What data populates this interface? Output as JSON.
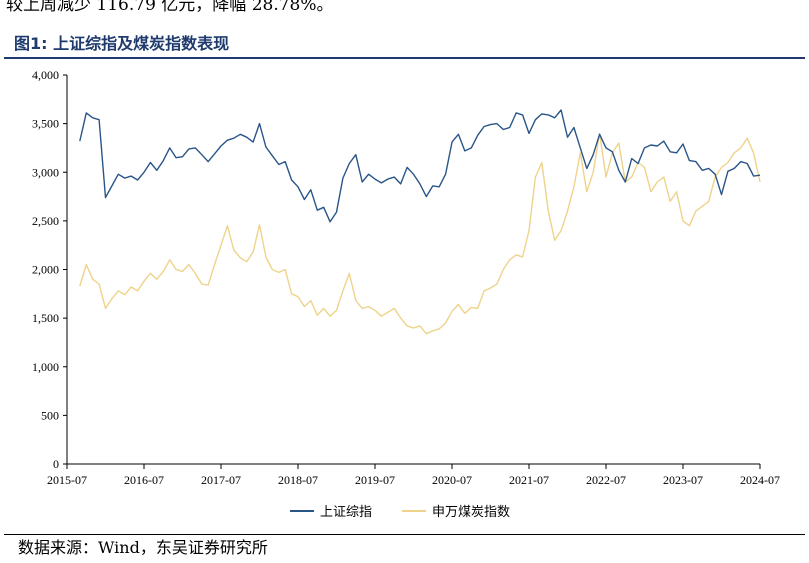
{
  "header": {
    "intro_text": "较上周减少 116.79 亿元，降幅 28.78%。",
    "figure_title": "图1:  上证综指及煤炭指数表现"
  },
  "footer": {
    "source": "数据来源：Wind，东吴证券研究所"
  },
  "chart_data": {
    "type": "line",
    "title": "",
    "xlabel": "",
    "ylabel": "",
    "ylim": [
      0,
      4000
    ],
    "yticks": [
      0,
      500,
      1000,
      1500,
      2000,
      2500,
      3000,
      3500,
      4000
    ],
    "ytick_labels": [
      "0",
      "500",
      "1,000",
      "1,500",
      "2,000",
      "2,500",
      "3,000",
      "3,500",
      "4,000"
    ],
    "xlim": [
      "2015-07",
      "2024-07"
    ],
    "xtick_labels": [
      "2015-07",
      "2016-07",
      "2017-07",
      "2018-07",
      "2019-07",
      "2020-07",
      "2021-07",
      "2022-07",
      "2023-07",
      "2024-07"
    ],
    "grid": false,
    "legend_position": "bottom",
    "series": [
      {
        "name": "上证综指",
        "color": "#2a5588",
        "x": [
          "2015-09",
          "2015-10",
          "2015-11",
          "2015-12",
          "2016-01",
          "2016-02",
          "2016-03",
          "2016-04",
          "2016-05",
          "2016-06",
          "2016-07",
          "2016-08",
          "2016-09",
          "2016-10",
          "2016-11",
          "2016-12",
          "2017-01",
          "2017-02",
          "2017-03",
          "2017-04",
          "2017-05",
          "2017-06",
          "2017-07",
          "2017-08",
          "2017-09",
          "2017-10",
          "2017-11",
          "2017-12",
          "2018-01",
          "2018-02",
          "2018-03",
          "2018-04",
          "2018-05",
          "2018-06",
          "2018-07",
          "2018-08",
          "2018-09",
          "2018-10",
          "2018-11",
          "2018-12",
          "2019-01",
          "2019-02",
          "2019-03",
          "2019-04",
          "2019-05",
          "2019-06",
          "2019-07",
          "2019-08",
          "2019-09",
          "2019-10",
          "2019-11",
          "2019-12",
          "2020-01",
          "2020-02",
          "2020-03",
          "2020-04",
          "2020-05",
          "2020-06",
          "2020-07",
          "2020-08",
          "2020-09",
          "2020-10",
          "2020-11",
          "2020-12",
          "2021-01",
          "2021-02",
          "2021-03",
          "2021-04",
          "2021-05",
          "2021-06",
          "2021-07",
          "2021-08",
          "2021-09",
          "2021-10",
          "2021-11",
          "2021-12",
          "2022-01",
          "2022-02",
          "2022-03",
          "2022-04",
          "2022-05",
          "2022-06",
          "2022-07",
          "2022-08",
          "2022-09",
          "2022-10",
          "2022-11",
          "2022-12",
          "2023-01",
          "2023-02",
          "2023-03",
          "2023-04",
          "2023-05",
          "2023-06",
          "2023-07",
          "2023-08",
          "2023-09",
          "2023-10",
          "2023-11",
          "2023-12",
          "2024-01",
          "2024-02",
          "2024-03",
          "2024-04",
          "2024-05",
          "2024-06",
          "2024-07"
        ],
        "values": [
          3320,
          3610,
          3560,
          3540,
          2740,
          2860,
          2980,
          2940,
          2960,
          2920,
          3000,
          3100,
          3020,
          3120,
          3250,
          3150,
          3160,
          3240,
          3250,
          3180,
          3110,
          3190,
          3270,
          3330,
          3350,
          3390,
          3360,
          3310,
          3500,
          3260,
          3170,
          3080,
          3110,
          2920,
          2850,
          2720,
          2820,
          2610,
          2640,
          2490,
          2590,
          2940,
          3090,
          3180,
          2900,
          2980,
          2930,
          2890,
          2930,
          2950,
          2880,
          3050,
          2980,
          2880,
          2750,
          2860,
          2850,
          2980,
          3310,
          3390,
          3220,
          3250,
          3380,
          3470,
          3490,
          3500,
          3440,
          3460,
          3610,
          3590,
          3400,
          3540,
          3600,
          3590,
          3560,
          3640,
          3360,
          3460,
          3250,
          3040,
          3180,
          3390,
          3250,
          3210,
          3020,
          2900,
          3140,
          3090,
          3250,
          3280,
          3270,
          3320,
          3210,
          3200,
          3290,
          3120,
          3110,
          3020,
          3040,
          2980,
          2770,
          3010,
          3040,
          3110,
          3090,
          2960,
          2970
        ]
      },
      {
        "name": "申万煤炭指数",
        "color": "#eed38a",
        "x": [
          "2015-09",
          "2015-10",
          "2015-11",
          "2015-12",
          "2016-01",
          "2016-02",
          "2016-03",
          "2016-04",
          "2016-05",
          "2016-06",
          "2016-07",
          "2016-08",
          "2016-09",
          "2016-10",
          "2016-11",
          "2016-12",
          "2017-01",
          "2017-02",
          "2017-03",
          "2017-04",
          "2017-05",
          "2017-06",
          "2017-07",
          "2017-08",
          "2017-09",
          "2017-10",
          "2017-11",
          "2017-12",
          "2018-01",
          "2018-02",
          "2018-03",
          "2018-04",
          "2018-05",
          "2018-06",
          "2018-07",
          "2018-08",
          "2018-09",
          "2018-10",
          "2018-11",
          "2018-12",
          "2019-01",
          "2019-02",
          "2019-03",
          "2019-04",
          "2019-05",
          "2019-06",
          "2019-07",
          "2019-08",
          "2019-09",
          "2019-10",
          "2019-11",
          "2019-12",
          "2020-01",
          "2020-02",
          "2020-03",
          "2020-04",
          "2020-05",
          "2020-06",
          "2020-07",
          "2020-08",
          "2020-09",
          "2020-10",
          "2020-11",
          "2020-12",
          "2021-01",
          "2021-02",
          "2021-03",
          "2021-04",
          "2021-05",
          "2021-06",
          "2021-07",
          "2021-08",
          "2021-09",
          "2021-10",
          "2021-11",
          "2021-12",
          "2022-01",
          "2022-02",
          "2022-03",
          "2022-04",
          "2022-05",
          "2022-06",
          "2022-07",
          "2022-08",
          "2022-09",
          "2022-10",
          "2022-11",
          "2022-12",
          "2023-01",
          "2023-02",
          "2023-03",
          "2023-04",
          "2023-05",
          "2023-06",
          "2023-07",
          "2023-08",
          "2023-09",
          "2023-10",
          "2023-11",
          "2023-12",
          "2024-01",
          "2024-02",
          "2024-03",
          "2024-04",
          "2024-05",
          "2024-06",
          "2024-07"
        ],
        "values": [
          1830,
          2050,
          1900,
          1850,
          1600,
          1700,
          1780,
          1740,
          1820,
          1780,
          1880,
          1960,
          1900,
          1980,
          2100,
          2000,
          1980,
          2050,
          1960,
          1850,
          1840,
          2050,
          2250,
          2450,
          2200,
          2120,
          2080,
          2180,
          2460,
          2130,
          2000,
          1970,
          2000,
          1750,
          1720,
          1620,
          1680,
          1530,
          1600,
          1520,
          1580,
          1780,
          1960,
          1680,
          1600,
          1620,
          1580,
          1520,
          1560,
          1600,
          1500,
          1420,
          1400,
          1420,
          1340,
          1370,
          1390,
          1450,
          1570,
          1640,
          1550,
          1610,
          1600,
          1780,
          1810,
          1850,
          2000,
          2100,
          2150,
          2130,
          2400,
          2950,
          3100,
          2600,
          2300,
          2400,
          2600,
          2850,
          3200,
          2800,
          3000,
          3400,
          2950,
          3200,
          3300,
          2900,
          2950,
          3100,
          3050,
          2800,
          2900,
          2950,
          2700,
          2800,
          2500,
          2450,
          2600,
          2650,
          2700,
          2950,
          3050,
          3100,
          3200,
          3250,
          3350,
          3200,
          2900
        ]
      }
    ]
  }
}
